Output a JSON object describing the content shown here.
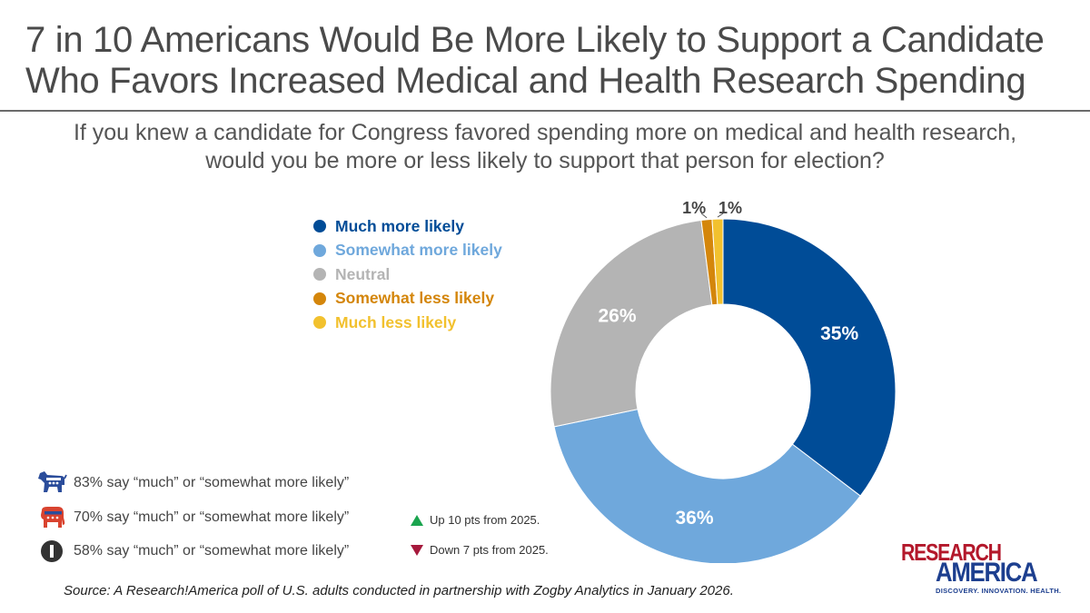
{
  "title": {
    "line1": "7 in 10 Americans Would Be More Likely to Support a Candidate",
    "line2": "Who Favors Increased Medical and Health Research Spending"
  },
  "question": "If you knew a candidate for Congress favored spending more on medical and health research, would you be more or less likely to support that person for election?",
  "chart_data": {
    "type": "pie",
    "donut": true,
    "title": "7 in 10 Americans Would Be More Likely to Support a Candidate Who Favors Increased Medical and Health Research Spending",
    "subtitle": "If you knew a candidate for Congress favored spending more on medical and health research, would you be more or less likely to support that person for election?",
    "categories": [
      "Much more likely",
      "Somewhat more likely",
      "Neutral",
      "Somewhat less likely",
      "Much less likely"
    ],
    "values": [
      35,
      36,
      26,
      1,
      1
    ],
    "labels": [
      "35%",
      "36%",
      "26%",
      "1%",
      "1%"
    ],
    "colors": [
      "#004c97",
      "#6fa8dc",
      "#b4b4b4",
      "#d4860b",
      "#f2c12e"
    ],
    "legend_position": "left"
  },
  "party_breakdown": [
    {
      "party": "Democrats",
      "icon": "democrat-donkey-icon",
      "text": "83% say “much” or “somewhat more likely”",
      "change": null
    },
    {
      "party": "Republicans",
      "icon": "republican-elephant-icon",
      "text": "70% say “much” or “somewhat more likely”",
      "change": {
        "direction": "up",
        "text": "Up 10 pts from 2025.",
        "color": "#1aa44e"
      }
    },
    {
      "party": "Independents",
      "icon": "independent-i-icon",
      "text": "58% say “much” or “somewhat more likely”",
      "change": {
        "direction": "down",
        "text": "Down 7 pts from 2025.",
        "color": "#a6193c"
      }
    }
  ],
  "source": "Source: A Research!America poll of U.S. adults conducted in partnership with Zogby Analytics in January 2026.",
  "logo": {
    "line1": "RESEARCH",
    "line2": "AMERICA",
    "tagline": "DISCOVERY. INNOVATION. HEALTH."
  }
}
